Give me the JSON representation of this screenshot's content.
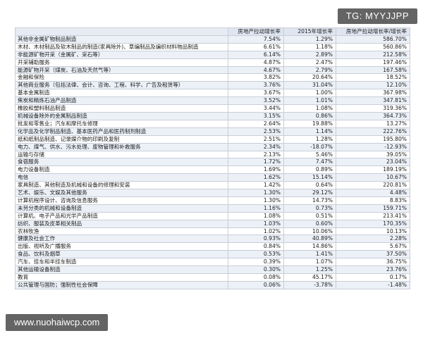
{
  "watermark_top": "TG: MYYJJPP",
  "watermark_bottom": "www.nuohaiwcp.com",
  "table": {
    "headers": [
      "",
      "房地产拉动增长率",
      "2015年增长率",
      "房地产拉动增长率/增长率"
    ],
    "rows": [
      [
        "其他非金属矿物制品制造",
        "7.54%",
        "1.29%",
        "586.70%"
      ],
      [
        "木材、木材制品及软木制品的制造(家具除外)、草编制品及编织材料物品制造",
        "6.61%",
        "1.18%",
        "560.86%"
      ],
      [
        "非能源矿物开采（金属矿、采石等）",
        "6.14%",
        "2.89%",
        "212.58%"
      ],
      [
        "开采辅助服务",
        "4.87%",
        "2.47%",
        "197.46%"
      ],
      [
        "能源矿物开采（煤炭、石油及天然气等）",
        "4.67%",
        "2.79%",
        "167.58%"
      ],
      [
        "金融和保险",
        "3.82%",
        "20.64%",
        "18.52%"
      ],
      [
        "其他商业服务（包括法律、会计、咨询、工程、科学、广告及租赁等）",
        "3.76%",
        "31.04%",
        "12.10%"
      ],
      [
        "基本金属制造",
        "3.67%",
        "1.00%",
        "367.98%"
      ],
      [
        "焦炭和精炼石油产品制造",
        "3.52%",
        "1.01%",
        "347.81%"
      ],
      [
        "橡胶和塑料制品制造",
        "3.44%",
        "1.08%",
        "319.36%"
      ],
      [
        "机械设备除外的金属制品制造",
        "3.15%",
        "0.86%",
        "364.73%"
      ],
      [
        "批发和零售业；汽车和摩托车修理",
        "2.64%",
        "19.88%",
        "13.27%"
      ],
      [
        "化学品及化学制品制造、基本医药产品和医药制剂制造",
        "2.53%",
        "1.14%",
        "222.76%"
      ],
      [
        "纸和纸制品制造、记录媒介物的印刷及复制",
        "2.51%",
        "1.28%",
        "195.80%"
      ],
      [
        "电力、煤气、供水、污水处理、废物管理和补救服务",
        "2.34%",
        "-18.07%",
        "-12.93%"
      ],
      [
        "运输与存储",
        "2.13%",
        "5.46%",
        "39.05%"
      ],
      [
        "食宿服务",
        "1.72%",
        "7.47%",
        "23.04%"
      ],
      [
        "电力设备制造",
        "1.69%",
        "0.89%",
        "189.19%"
      ],
      [
        "电信",
        "1.62%",
        "15.14%",
        "10.67%"
      ],
      [
        "家具制造、其他制造及机械和设备的修理和安装",
        "1.42%",
        "0.64%",
        "220.81%"
      ],
      [
        "艺术、娱乐、文娱及其他服务",
        "1.30%",
        "29.12%",
        "4.48%"
      ],
      [
        "计算机程序设计、咨询及信息服务",
        "1.30%",
        "14.73%",
        "8.83%"
      ],
      [
        "未另分类的机械和设备制造",
        "1.16%",
        "0.73%",
        "159.71%"
      ],
      [
        "计算机、电子产品和光学产品制造",
        "1.08%",
        "0.51%",
        "213.41%"
      ],
      [
        "纺织、服装及皮革相关制品",
        "1.03%",
        "0.60%",
        "170.35%"
      ],
      [
        "农林牧渔",
        "1.02%",
        "10.06%",
        "10.13%"
      ],
      [
        "健康及社会工作",
        "0.93%",
        "40.89%",
        "2.28%"
      ],
      [
        "出版、视听及广播服务",
        "0.84%",
        "14.86%",
        "5.67%"
      ],
      [
        "食品、饮料及烟草",
        "0.53%",
        "1.41%",
        "37.50%"
      ],
      [
        "汽车、挂车和半挂车制造",
        "0.39%",
        "1.07%",
        "36.75%"
      ],
      [
        "其他运输设备制造",
        "0.30%",
        "1.25%",
        "23.76%"
      ],
      [
        "教育",
        "0.08%",
        "45.17%",
        "0.17%"
      ],
      [
        "公共管理与国防；强制性社会保障",
        "0.06%",
        "-3.78%",
        "-1.48%"
      ]
    ]
  }
}
